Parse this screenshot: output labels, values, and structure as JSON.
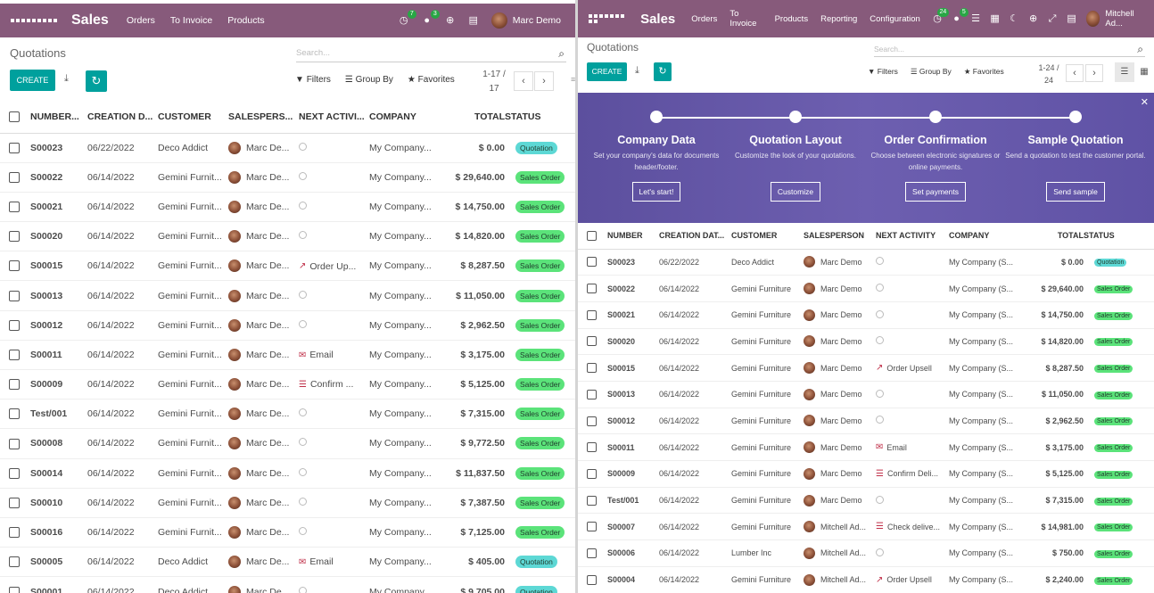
{
  "left": {
    "nav": {
      "brand": "Sales",
      "menu": [
        "Orders",
        "To Invoice",
        "Products"
      ],
      "activity_badge": "7",
      "message_badge": "3",
      "user": "Marc Demo"
    },
    "title": "Quotations",
    "search_placeholder": "Search...",
    "create": "CREATE",
    "filters": "Filters",
    "group_by": "Group By",
    "favorites": "Favorites",
    "pager_range": "1-17 /",
    "pager_total": "17",
    "columns": [
      "NUMBER...",
      "CREATION D...",
      "CUSTOMER",
      "SALESPERS...",
      "NEXT ACTIVI...",
      "COMPANY",
      "TOTAL",
      "STATUS"
    ],
    "rows": [
      {
        "number": "S00023",
        "date": "06/22/2022",
        "customer": "Deco Addict",
        "salesperson": "Marc De...",
        "activity": "",
        "activity_icon": "clock",
        "company": "My Company...",
        "total": "$ 0.00",
        "status": "Quotation"
      },
      {
        "number": "S00022",
        "date": "06/14/2022",
        "customer": "Gemini Furnit...",
        "salesperson": "Marc De...",
        "activity": "",
        "activity_icon": "clock",
        "company": "My Company...",
        "total": "$ 29,640.00",
        "status": "Sales Order"
      },
      {
        "number": "S00021",
        "date": "06/14/2022",
        "customer": "Gemini Furnit...",
        "salesperson": "Marc De...",
        "activity": "",
        "activity_icon": "clock",
        "company": "My Company...",
        "total": "$ 14,750.00",
        "status": "Sales Order"
      },
      {
        "number": "S00020",
        "date": "06/14/2022",
        "customer": "Gemini Furnit...",
        "salesperson": "Marc De...",
        "activity": "",
        "activity_icon": "clock",
        "company": "My Company...",
        "total": "$ 14,820.00",
        "status": "Sales Order"
      },
      {
        "number": "S00015",
        "date": "06/14/2022",
        "customer": "Gemini Furnit...",
        "salesperson": "Marc De...",
        "activity": "Order Up...",
        "activity_icon": "chart",
        "company": "My Company...",
        "total": "$ 8,287.50",
        "status": "Sales Order"
      },
      {
        "number": "S00013",
        "date": "06/14/2022",
        "customer": "Gemini Furnit...",
        "salesperson": "Marc De...",
        "activity": "",
        "activity_icon": "clock",
        "company": "My Company...",
        "total": "$ 11,050.00",
        "status": "Sales Order"
      },
      {
        "number": "S00012",
        "date": "06/14/2022",
        "customer": "Gemini Furnit...",
        "salesperson": "Marc De...",
        "activity": "",
        "activity_icon": "clock",
        "company": "My Company...",
        "total": "$ 2,962.50",
        "status": "Sales Order"
      },
      {
        "number": "S00011",
        "date": "06/14/2022",
        "customer": "Gemini Furnit...",
        "salesperson": "Marc De...",
        "activity": "Email",
        "activity_icon": "email",
        "company": "My Company...",
        "total": "$ 3,175.00",
        "status": "Sales Order"
      },
      {
        "number": "S00009",
        "date": "06/14/2022",
        "customer": "Gemini Furnit...",
        "salesperson": "Marc De...",
        "activity": "Confirm ...",
        "activity_icon": "truck",
        "company": "My Company...",
        "total": "$ 5,125.00",
        "status": "Sales Order"
      },
      {
        "number": "Test/001",
        "date": "06/14/2022",
        "customer": "Gemini Furnit...",
        "salesperson": "Marc De...",
        "activity": "",
        "activity_icon": "clock",
        "company": "My Company...",
        "total": "$ 7,315.00",
        "status": "Sales Order"
      },
      {
        "number": "S00008",
        "date": "06/14/2022",
        "customer": "Gemini Furnit...",
        "salesperson": "Marc De...",
        "activity": "",
        "activity_icon": "clock",
        "company": "My Company...",
        "total": "$ 9,772.50",
        "status": "Sales Order"
      },
      {
        "number": "S00014",
        "date": "06/14/2022",
        "customer": "Gemini Furnit...",
        "salesperson": "Marc De...",
        "activity": "",
        "activity_icon": "clock",
        "company": "My Company...",
        "total": "$ 11,837.50",
        "status": "Sales Order"
      },
      {
        "number": "S00010",
        "date": "06/14/2022",
        "customer": "Gemini Furnit...",
        "salesperson": "Marc De...",
        "activity": "",
        "activity_icon": "clock",
        "company": "My Company...",
        "total": "$ 7,387.50",
        "status": "Sales Order"
      },
      {
        "number": "S00016",
        "date": "06/14/2022",
        "customer": "Gemini Furnit...",
        "salesperson": "Marc De...",
        "activity": "",
        "activity_icon": "clock",
        "company": "My Company...",
        "total": "$ 7,125.00",
        "status": "Sales Order"
      },
      {
        "number": "S00005",
        "date": "06/14/2022",
        "customer": "Deco Addict",
        "salesperson": "Marc De...",
        "activity": "Email",
        "activity_icon": "email",
        "company": "My Company...",
        "total": "$ 405.00",
        "status": "Quotation"
      },
      {
        "number": "S00001",
        "date": "06/14/2022",
        "customer": "Deco Addict",
        "salesperson": "Marc De...",
        "activity": "",
        "activity_icon": "clock",
        "company": "My Company...",
        "total": "$ 9,705.00",
        "status": "Quotation"
      }
    ]
  },
  "right": {
    "nav": {
      "brand": "Sales",
      "menu": [
        "Orders",
        "To Invoice",
        "Products",
        "Reporting",
        "Configuration"
      ],
      "activity_badge": "24",
      "message_badge": "5",
      "user": "Mitchell Ad..."
    },
    "title": "Quotations",
    "search_placeholder": "Search...",
    "create": "CREATE",
    "filters": "Filters",
    "group_by": "Group By",
    "favorites": "Favorites",
    "pager_range": "1-24 /",
    "pager_total": "24",
    "banner": {
      "steps": [
        {
          "title": "Company Data",
          "desc": "Set your company's data for documents header/footer.",
          "button": "Let's start!"
        },
        {
          "title": "Quotation Layout",
          "desc": "Customize the look of your quotations.",
          "button": "Customize"
        },
        {
          "title": "Order Confirmation",
          "desc": "Choose between electronic signatures or online payments.",
          "button": "Set payments"
        },
        {
          "title": "Sample Quotation",
          "desc": "Send a quotation to test the customer portal.",
          "button": "Send sample"
        }
      ]
    },
    "columns": [
      "NUMBER",
      "CREATION DAT...",
      "CUSTOMER",
      "SALESPERSON",
      "NEXT ACTIVITY",
      "COMPANY",
      "TOTAL",
      "STATUS"
    ],
    "rows": [
      {
        "number": "S00023",
        "date": "06/22/2022",
        "customer": "Deco Addict",
        "salesperson": "Marc Demo",
        "activity": "",
        "activity_icon": "clock",
        "company": "My Company (S...",
        "total": "$ 0.00",
        "status": "Quotation"
      },
      {
        "number": "S00022",
        "date": "06/14/2022",
        "customer": "Gemini Furniture",
        "salesperson": "Marc Demo",
        "activity": "",
        "activity_icon": "clock",
        "company": "My Company (S...",
        "total": "$ 29,640.00",
        "status": "Sales Order"
      },
      {
        "number": "S00021",
        "date": "06/14/2022",
        "customer": "Gemini Furniture",
        "salesperson": "Marc Demo",
        "activity": "",
        "activity_icon": "clock",
        "company": "My Company (S...",
        "total": "$ 14,750.00",
        "status": "Sales Order"
      },
      {
        "number": "S00020",
        "date": "06/14/2022",
        "customer": "Gemini Furniture",
        "salesperson": "Marc Demo",
        "activity": "",
        "activity_icon": "clock",
        "company": "My Company (S...",
        "total": "$ 14,820.00",
        "status": "Sales Order"
      },
      {
        "number": "S00015",
        "date": "06/14/2022",
        "customer": "Gemini Furniture",
        "salesperson": "Marc Demo",
        "activity": "Order Upsell",
        "activity_icon": "chart",
        "company": "My Company (S...",
        "total": "$ 8,287.50",
        "status": "Sales Order"
      },
      {
        "number": "S00013",
        "date": "06/14/2022",
        "customer": "Gemini Furniture",
        "salesperson": "Marc Demo",
        "activity": "",
        "activity_icon": "clock",
        "company": "My Company (S...",
        "total": "$ 11,050.00",
        "status": "Sales Order"
      },
      {
        "number": "S00012",
        "date": "06/14/2022",
        "customer": "Gemini Furniture",
        "salesperson": "Marc Demo",
        "activity": "",
        "activity_icon": "clock",
        "company": "My Company (S...",
        "total": "$ 2,962.50",
        "status": "Sales Order"
      },
      {
        "number": "S00011",
        "date": "06/14/2022",
        "customer": "Gemini Furniture",
        "salesperson": "Marc Demo",
        "activity": "Email",
        "activity_icon": "email",
        "company": "My Company (S...",
        "total": "$ 3,175.00",
        "status": "Sales Order"
      },
      {
        "number": "S00009",
        "date": "06/14/2022",
        "customer": "Gemini Furniture",
        "salesperson": "Marc Demo",
        "activity": "Confirm Deli...",
        "activity_icon": "truck",
        "company": "My Company (S...",
        "total": "$ 5,125.00",
        "status": "Sales Order"
      },
      {
        "number": "Test/001",
        "date": "06/14/2022",
        "customer": "Gemini Furniture",
        "salesperson": "Marc Demo",
        "activity": "",
        "activity_icon": "clock",
        "company": "My Company (S...",
        "total": "$ 7,315.00",
        "status": "Sales Order"
      },
      {
        "number": "S00007",
        "date": "06/14/2022",
        "customer": "Gemini Furniture",
        "salesperson": "Mitchell Ad...",
        "activity": "Check delive...",
        "activity_icon": "truck",
        "company": "My Company (S...",
        "total": "$ 14,981.00",
        "status": "Sales Order"
      },
      {
        "number": "S00006",
        "date": "06/14/2022",
        "customer": "Lumber Inc",
        "salesperson": "Mitchell Ad...",
        "activity": "",
        "activity_icon": "clock",
        "company": "My Company (S...",
        "total": "$ 750.00",
        "status": "Sales Order"
      },
      {
        "number": "S00004",
        "date": "06/14/2022",
        "customer": "Gemini Furniture",
        "salesperson": "Mitchell Ad...",
        "activity": "Order Upsell",
        "activity_icon": "chart",
        "company": "My Company (S...",
        "total": "$ 2,240.00",
        "status": "Sales Order"
      }
    ]
  }
}
